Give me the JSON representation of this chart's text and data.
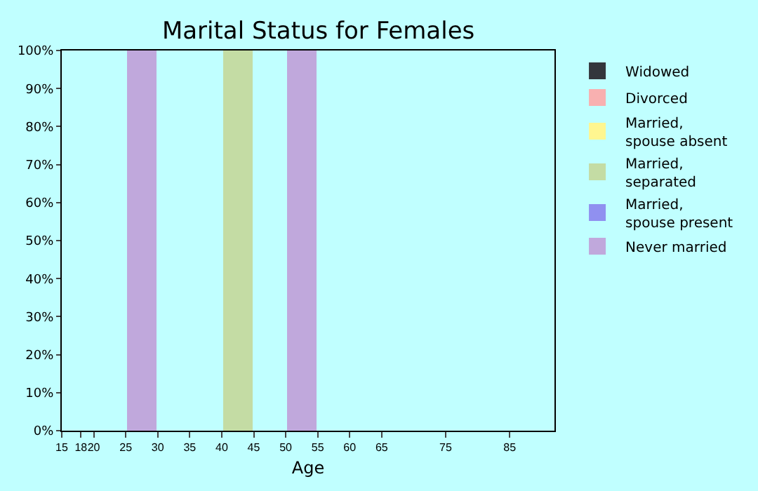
{
  "chart_data": {
    "type": "bar",
    "stacked": true,
    "title": "Marital Status for Females",
    "xlabel": "Age",
    "x": [
      27.5,
      42.5,
      52.5
    ],
    "series": [
      {
        "name": "Never married",
        "color": "#c0a8dc",
        "values": [
          100,
          null,
          100
        ]
      },
      {
        "name": "Married, spouse present",
        "color": "#9090f0",
        "values": [
          null,
          null,
          null
        ]
      },
      {
        "name": "Married, separated",
        "color": "#c4dca4",
        "values": [
          null,
          100,
          null
        ]
      },
      {
        "name": "Married, spouse absent",
        "color": "#fff690",
        "values": [
          null,
          null,
          null
        ]
      },
      {
        "name": "Divorced",
        "color": "#f8b0b0",
        "values": [
          null,
          null,
          null
        ]
      },
      {
        "name": "Widowed",
        "color": "#33363c",
        "values": [
          null,
          null,
          null
        ]
      }
    ],
    "xlim": [
      15,
      92
    ],
    "xticks": [
      15,
      18,
      20,
      25,
      30,
      35,
      40,
      45,
      50,
      55,
      60,
      65,
      75,
      85
    ],
    "ylim": [
      0,
      100
    ],
    "yticks": [
      {
        "value": 0,
        "label": "0%"
      },
      {
        "value": 10,
        "label": "10%"
      },
      {
        "value": 20,
        "label": "20%"
      },
      {
        "value": 30,
        "label": "30%"
      },
      {
        "value": 40,
        "label": "40%"
      },
      {
        "value": 50,
        "label": "50%"
      },
      {
        "value": 60,
        "label": "60%"
      },
      {
        "value": 70,
        "label": "70%"
      },
      {
        "value": 80,
        "label": "80%"
      },
      {
        "value": 90,
        "label": "90%"
      },
      {
        "value": 100,
        "label": "100%"
      }
    ],
    "grid": false,
    "legend": "right"
  }
}
